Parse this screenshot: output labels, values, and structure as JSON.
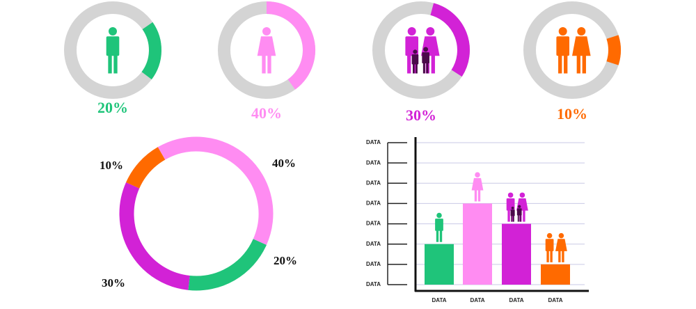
{
  "chart_data": [
    {
      "type": "ring-set",
      "values": [
        20,
        40,
        30,
        10
      ],
      "value_labels": [
        "20%",
        "40%",
        "30%",
        "10%"
      ],
      "colors": [
        "#1fc47a",
        "#ff8cf2",
        "#d222d6",
        "#ff6a00"
      ],
      "track_color": "#d4d4d4"
    },
    {
      "type": "donut",
      "values": [
        20,
        40,
        30,
        10
      ],
      "value_labels": [
        "20%",
        "40%",
        "30%",
        "10%"
      ],
      "colors": [
        "#1fc47a",
        "#ff8cf2",
        "#d222d6",
        "#ff6a00"
      ]
    },
    {
      "type": "bar",
      "categories": [
        "DATA",
        "DATA",
        "DATA",
        "DATA"
      ],
      "values": [
        2,
        4,
        3,
        1
      ],
      "colors": [
        "#1fc47a",
        "#ff8cf2",
        "#d222d6",
        "#ff6a00"
      ],
      "ylim": [
        0,
        7
      ],
      "yticks": [
        {
          "value": 0,
          "label": "DATA"
        },
        {
          "value": 1,
          "label": "DATA"
        },
        {
          "value": 2,
          "label": "DATA"
        },
        {
          "value": 3,
          "label": "DATA"
        },
        {
          "value": 4,
          "label": "DATA"
        },
        {
          "value": 5,
          "label": "DATA"
        },
        {
          "value": 6,
          "label": "DATA"
        },
        {
          "value": 7,
          "label": "DATA"
        }
      ],
      "grid": true
    }
  ]
}
